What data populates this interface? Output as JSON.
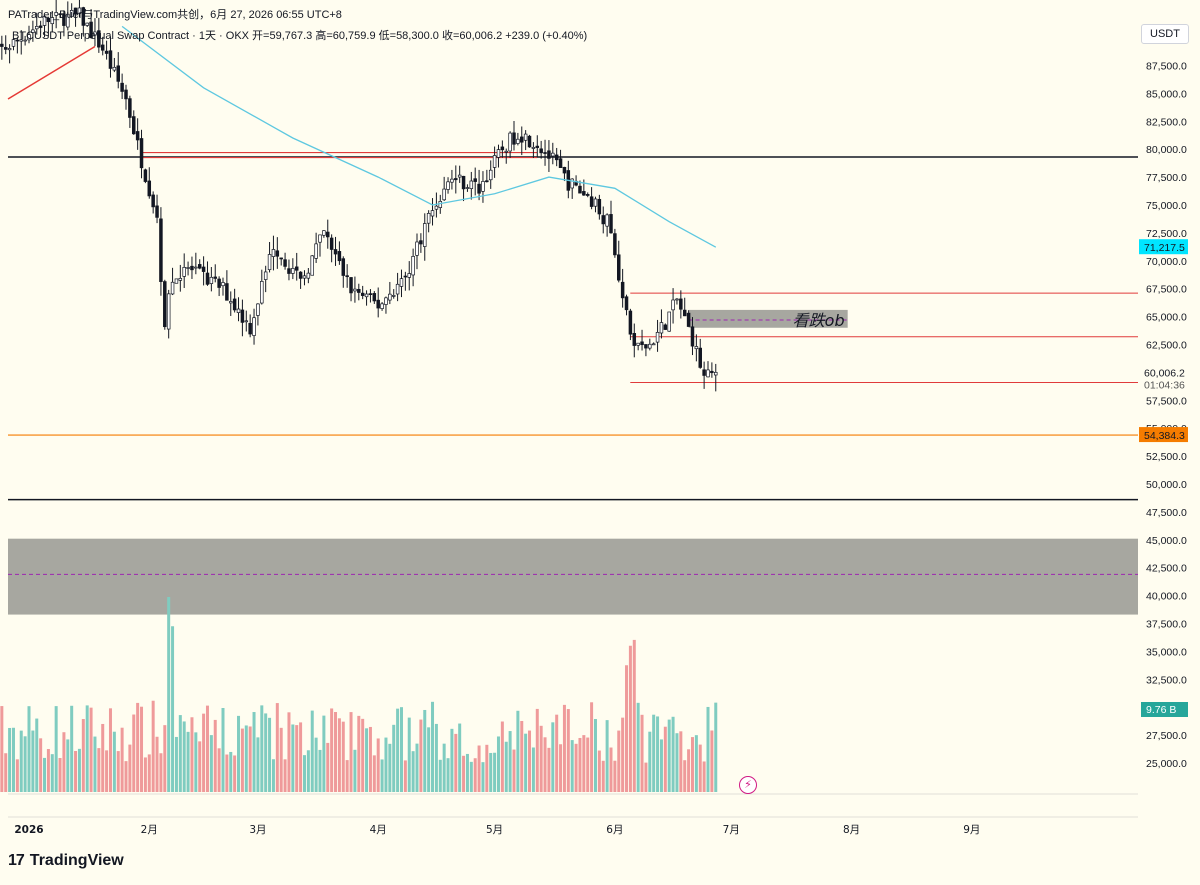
{
  "header": {
    "attribution": "PATrader_Buer与TradingView.com共创，6月 27, 2026 06:55 UTC+8",
    "symbol_line": "BTCUSDT Perpetual Swap Contract · 1天 · OKX  开=59,767.3  高=60,759.9  低=58,300.0  收=60,006.2  +239.0 (+0.40%)"
  },
  "currency": "USDT",
  "brand": "TradingView",
  "brand_icon": "tradingview-logo-icon",
  "colors": {
    "background": "#fffdf0",
    "bull": "#26a69a",
    "bear": "#131722",
    "vol_up": "#7fccc0",
    "vol_down": "#ef9a9a",
    "ma": "#5ec8e0",
    "level_black": "#131722",
    "level_red": "#e03b3b",
    "level_orange": "#f57c00",
    "zone_gray": "#8a8a86",
    "zone_mid": "#9c27b0",
    "trend": "#e53935"
  },
  "chart_data": {
    "type": "candlestick",
    "symbol": "BTCUSDT",
    "timeframe": "1天",
    "exchange": "OKX",
    "ohlc_last": {
      "open": 59767.3,
      "high": 60759.9,
      "low": 58300.0,
      "close": 60006.2,
      "change": 239.0,
      "change_pct": 0.4
    },
    "ylim": [
      22000,
      92000
    ],
    "y_ticks": [
      25000,
      27500,
      30000,
      32500,
      35000,
      37500,
      40000,
      42500,
      45000,
      47500,
      50000,
      52500,
      55000,
      57500,
      60000,
      62500,
      65000,
      67500,
      70000,
      72500,
      75000,
      77500,
      80000,
      82500,
      85000,
      87500
    ],
    "y_tick_labels": [
      "25,000.0",
      "27,500.0",
      "30,000.0",
      "32,500.0",
      "35,000.0",
      "37,500.0",
      "40,000.0",
      "42,500.0",
      "45,000.0",
      "47,500.0",
      "50,000.0",
      "52,500.0",
      "55,000.0",
      "57,500.0",
      "60,000.0",
      "62,500.0",
      "65,000.0",
      "67,500.0",
      "70,000.0",
      "72,500.0",
      "75,000.0",
      "77,500.0",
      "80,000.0",
      "82,500.0",
      "85,000.0",
      "87,500.0"
    ],
    "x_ticks": [
      {
        "label": "2026",
        "date": "2026-01-01",
        "bold": true
      },
      {
        "label": "2月",
        "date": "2026-02-01"
      },
      {
        "label": "3月",
        "date": "2026-03-01"
      },
      {
        "label": "4月",
        "date": "2026-04-01"
      },
      {
        "label": "5月",
        "date": "2026-05-01"
      },
      {
        "label": "6月",
        "date": "2026-06-01"
      },
      {
        "label": "7月",
        "date": "2026-07-01"
      },
      {
        "label": "8月",
        "date": "2026-08-01"
      },
      {
        "label": "9月",
        "date": "2026-09-01"
      }
    ],
    "price_path": {
      "start_date": "2025-12-20",
      "end_date": "2026-06-27",
      "anchors": [
        [
          "2025-12-20",
          88000
        ],
        [
          "2025-12-28",
          89500
        ],
        [
          "2026-01-05",
          91500
        ],
        [
          "2026-01-14",
          92000
        ],
        [
          "2026-01-20",
          89000
        ],
        [
          "2026-01-26",
          84500
        ],
        [
          "2026-01-30",
          79000
        ],
        [
          "2026-02-03",
          74000
        ],
        [
          "2026-02-05",
          63500
        ],
        [
          "2026-02-06",
          67500
        ],
        [
          "2026-02-10",
          69500
        ],
        [
          "2026-02-20",
          67500
        ],
        [
          "2026-02-27",
          64000
        ],
        [
          "2026-03-05",
          71500
        ],
        [
          "2026-03-12",
          68000
        ],
        [
          "2026-03-18",
          72500
        ],
        [
          "2026-03-25",
          67500
        ],
        [
          "2026-04-01",
          66000
        ],
        [
          "2026-04-08",
          68500
        ],
        [
          "2026-04-14",
          74000
        ],
        [
          "2026-04-20",
          77500
        ],
        [
          "2026-04-27",
          76500
        ],
        [
          "2026-05-03",
          80000
        ],
        [
          "2026-05-07",
          81500
        ],
        [
          "2026-05-12",
          80500
        ],
        [
          "2026-05-16",
          79000
        ],
        [
          "2026-05-20",
          77000
        ],
        [
          "2026-05-26",
          75500
        ],
        [
          "2026-05-30",
          73500
        ],
        [
          "2026-06-01",
          71000
        ],
        [
          "2026-06-03",
          66500
        ],
        [
          "2026-06-06",
          62000
        ],
        [
          "2026-06-10",
          62500
        ],
        [
          "2026-06-14",
          64500
        ],
        [
          "2026-06-17",
          66500
        ],
        [
          "2026-06-21",
          63000
        ],
        [
          "2026-06-24",
          59500
        ],
        [
          "2026-06-26",
          59800
        ],
        [
          "2026-06-27",
          60006.2
        ]
      ]
    },
    "moving_average": {
      "label_value": 71217.5,
      "label": "71,217.5",
      "points": [
        [
          "2026-01-25",
          91000
        ],
        [
          "2026-02-15",
          85500
        ],
        [
          "2026-03-10",
          81000
        ],
        [
          "2026-04-01",
          77500
        ],
        [
          "2026-04-15",
          75000
        ],
        [
          "2026-05-01",
          76000
        ],
        [
          "2026-05-15",
          77500
        ],
        [
          "2026-06-01",
          76500
        ],
        [
          "2026-06-15",
          73500
        ],
        [
          "2026-06-27",
          71217.5
        ]
      ]
    },
    "horizontal_levels": [
      {
        "name": "resistance-black",
        "price": 79300,
        "color": "#131722"
      },
      {
        "name": "support-orange",
        "price": 54384.3,
        "label": "54,384.3",
        "color": "#f57c00"
      },
      {
        "name": "support-black",
        "price": 48600,
        "color": "#131722"
      }
    ],
    "ray_levels": [
      {
        "name": "red-ray-top",
        "price": 67100,
        "from": "2026-06-06"
      },
      {
        "name": "red-ray-mid",
        "price": 63200,
        "from": "2026-06-06"
      },
      {
        "name": "red-ray-low",
        "price": 59100,
        "from": "2026-06-06"
      }
    ],
    "segments": [
      {
        "name": "red-band-top",
        "price": 79700,
        "from": "2026-01-30",
        "to": "2026-05-12"
      },
      {
        "name": "red-band-bottom",
        "price": 79250,
        "from": "2026-01-30",
        "to": "2026-05-12"
      }
    ],
    "zones": [
      {
        "name": "bearish-ob-zone",
        "label": "看跌ob",
        "top": 65600,
        "bottom": 64000,
        "mid": 64700,
        "from": "2026-06-20",
        "to": "2026-07-31"
      },
      {
        "name": "support-zone",
        "top": 45100,
        "bottom": 38300,
        "mid": 41900
      }
    ],
    "trendline": {
      "from": [
        "2025-12-20",
        84500
      ],
      "to": [
        "2026-01-18",
        89200
      ]
    },
    "volume": {
      "label": "9.76 B",
      "pane_ylim": [
        0,
        10
      ],
      "spikes": [
        [
          "2026-02-06",
          10
        ],
        [
          "2026-02-07",
          8.5
        ],
        [
          "2026-06-04",
          6.5
        ],
        [
          "2026-06-05",
          7.5
        ],
        [
          "2026-06-06",
          7.8
        ]
      ]
    },
    "price_label": {
      "price": 60006.2,
      "label": "60,006.2",
      "countdown": "01:04:36"
    }
  }
}
